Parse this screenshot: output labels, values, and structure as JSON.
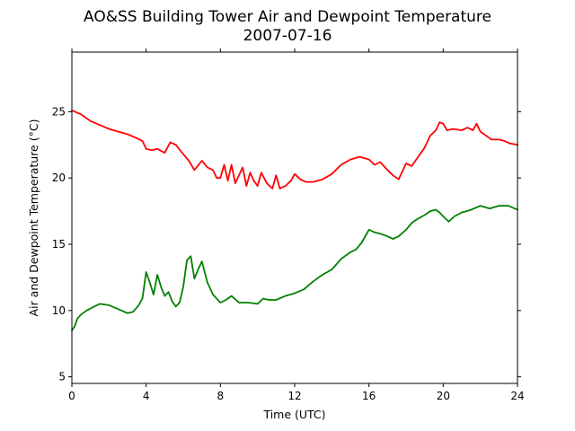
{
  "chart_data": {
    "type": "line",
    "title": "AO&SS Building Tower Air and Dewpoint Temperature",
    "subtitle": "2007-07-16",
    "xlabel": "Time (UTC)",
    "ylabel": "Air and Dewpoint Temperature (°C)",
    "xlim": [
      0,
      24
    ],
    "ylim": [
      4.5,
      29.5
    ],
    "xticks": [
      0,
      4,
      8,
      12,
      16,
      20,
      24
    ],
    "yticks": [
      5,
      10,
      15,
      20,
      25
    ],
    "grid": false,
    "series": [
      {
        "color": "#ff0000",
        "x": [
          0,
          0.5,
          1,
          1.5,
          2,
          2.5,
          3,
          3.5,
          3.8,
          4,
          4.3,
          4.6,
          5,
          5.3,
          5.6,
          6,
          6.3,
          6.6,
          7,
          7.3,
          7.6,
          7.8,
          8,
          8.2,
          8.4,
          8.6,
          8.8,
          9,
          9.2,
          9.4,
          9.6,
          9.8,
          10,
          10.2,
          10.5,
          10.8,
          11,
          11.2,
          11.5,
          11.8,
          12,
          12.3,
          12.6,
          13,
          13.5,
          14,
          14.5,
          15,
          15.5,
          16,
          16.3,
          16.6,
          17,
          17.3,
          17.6,
          18,
          18.3,
          18.6,
          19,
          19.3,
          19.6,
          19.8,
          20,
          20.2,
          20.5,
          21,
          21.3,
          21.6,
          21.8,
          22,
          22.3,
          22.6,
          23,
          23.3,
          23.6,
          24
        ],
        "y": [
          25.1,
          24.8,
          24.3,
          24,
          23.7,
          23.5,
          23.3,
          23,
          22.8,
          22.2,
          22.1,
          22.2,
          21.9,
          22.7,
          22.5,
          21.8,
          21.3,
          20.6,
          21.3,
          20.8,
          20.6,
          20,
          20,
          21,
          19.8,
          21,
          19.6,
          20.2,
          20.8,
          19.4,
          20.4,
          19.8,
          19.4,
          20.4,
          19.6,
          19.2,
          20.2,
          19.2,
          19.4,
          19.8,
          20.3,
          19.9,
          19.7,
          19.7,
          19.9,
          20.3,
          21,
          21.4,
          21.6,
          21.4,
          21,
          21.2,
          20.6,
          20.2,
          19.9,
          21.1,
          20.9,
          21.5,
          22.3,
          23.2,
          23.6,
          24.2,
          24.1,
          23.6,
          23.7,
          23.6,
          23.8,
          23.6,
          24.1,
          23.5,
          23.2,
          22.9,
          22.9,
          22.8,
          22.6,
          22.5
        ]
      },
      {
        "color": "#008000",
        "x": [
          0,
          0.15,
          0.3,
          0.5,
          0.8,
          1.2,
          1.5,
          2,
          2.5,
          3,
          3.3,
          3.6,
          3.8,
          4,
          4.2,
          4.4,
          4.6,
          4.8,
          5,
          5.2,
          5.4,
          5.6,
          5.8,
          6,
          6.2,
          6.4,
          6.6,
          6.8,
          7,
          7.3,
          7.6,
          8,
          8.3,
          8.6,
          9,
          9.5,
          10,
          10.3,
          10.6,
          11,
          11.5,
          12,
          12.5,
          13,
          13.5,
          14,
          14.5,
          15,
          15.3,
          15.6,
          16,
          16.3,
          16.6,
          17,
          17.3,
          17.6,
          18,
          18.3,
          18.6,
          19,
          19.3,
          19.6,
          19.8,
          20,
          20.3,
          20.6,
          21,
          21.5,
          22,
          22.5,
          23,
          23.5,
          24
        ],
        "y": [
          8.5,
          8.8,
          9.4,
          9.7,
          10,
          10.3,
          10.5,
          10.4,
          10.1,
          9.8,
          9.9,
          10.4,
          10.9,
          12.9,
          12.1,
          11.2,
          12.7,
          11.8,
          11.1,
          11.4,
          10.7,
          10.3,
          10.6,
          11.8,
          13.8,
          14.1,
          12.4,
          13.1,
          13.7,
          12.1,
          11.2,
          10.6,
          10.8,
          11.1,
          10.6,
          10.6,
          10.5,
          10.9,
          10.8,
          10.8,
          11.1,
          11.3,
          11.6,
          12.2,
          12.7,
          13.1,
          13.9,
          14.4,
          14.6,
          15.1,
          16.1,
          15.9,
          15.8,
          15.6,
          15.4,
          15.6,
          16.1,
          16.6,
          16.9,
          17.2,
          17.5,
          17.6,
          17.4,
          17.1,
          16.7,
          17.1,
          17.4,
          17.6,
          17.9,
          17.7,
          17.9,
          17.9,
          17.6
        ]
      }
    ]
  }
}
